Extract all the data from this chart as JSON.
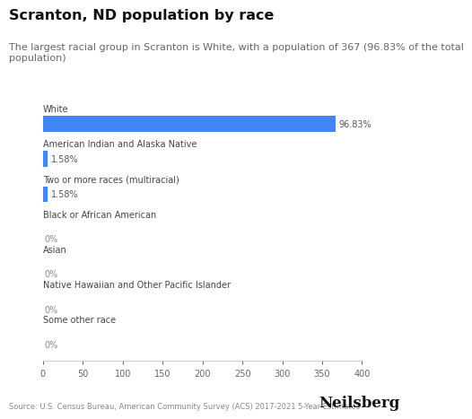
{
  "title": "Scranton, ND population by race",
  "subtitle": "The largest racial group in Scranton is White, with a population of 367 (96.83% of the total\npopulation)",
  "categories": [
    "White",
    "American Indian and Alaska Native",
    "Two or more races (multiracial)",
    "Black or African American",
    "Asian",
    "Native Hawaiian and Other Pacific Islander",
    "Some other race"
  ],
  "pop_values": [
    367,
    6,
    6,
    0,
    0,
    0,
    0
  ],
  "labels": [
    "96.83%",
    "1.58%",
    "1.58%",
    "0%",
    "0%",
    "0%",
    "0%"
  ],
  "bar_color": "#4285f4",
  "xlim": [
    0,
    400
  ],
  "xticks": [
    0,
    50,
    100,
    150,
    200,
    250,
    300,
    350,
    400
  ],
  "bar_height": 0.45,
  "background_color": "#ffffff",
  "source_text": "Source: U.S. Census Bureau, American Community Survey (ACS) 2017-2021 5-Year Estimates",
  "brand_text": "Neilsberg",
  "title_fontsize": 11.5,
  "subtitle_fontsize": 8,
  "label_fontsize": 7,
  "category_fontsize": 7,
  "tick_fontsize": 7,
  "source_fontsize": 6,
  "brand_fontsize": 12
}
